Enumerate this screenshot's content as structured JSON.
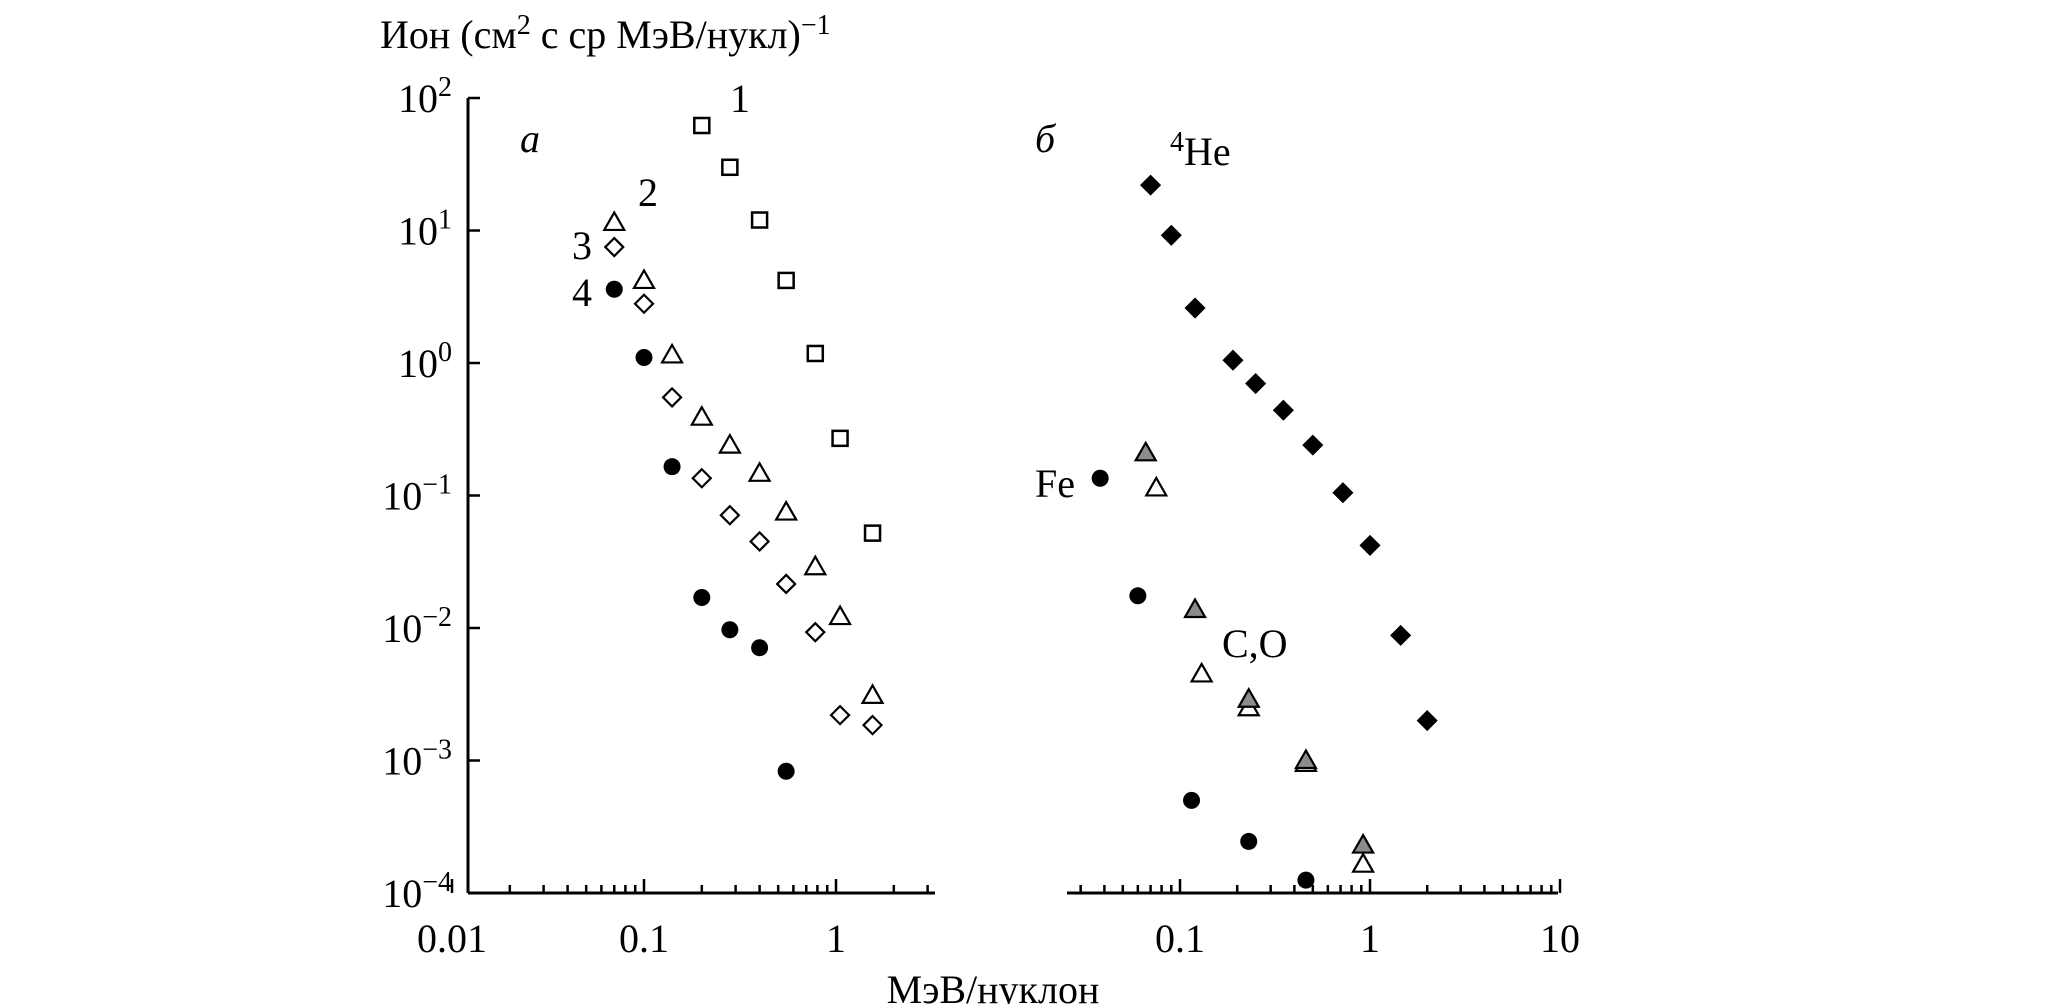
{
  "chart_data": {
    "type": "scatter",
    "ylabel": {
      "prefix": "Ион (см",
      "sup": "2",
      "middle": " с ср МэВ/нукл)",
      "sup2": "−1"
    },
    "xlabel": "МэВ/нуклон",
    "ylim": [
      0.0001,
      100
    ],
    "yticks": [
      {
        "base": "10",
        "exp": "2",
        "value": 100
      },
      {
        "base": "10",
        "exp": "1",
        "value": 10
      },
      {
        "base": "10",
        "exp": "0",
        "value": 1
      },
      {
        "base": "10",
        "exp": "−1",
        "value": 0.1
      },
      {
        "base": "10",
        "exp": "−2",
        "value": 0.01
      },
      {
        "base": "10",
        "exp": "−3",
        "value": 0.001
      },
      {
        "base": "10",
        "exp": "−4",
        "value": 0.0001
      }
    ],
    "panels": [
      {
        "letter": "а",
        "xlim": [
          0.01,
          3
        ],
        "xticks": [
          {
            "label": "0.01",
            "value": 0.01
          },
          {
            "label": "0.1",
            "value": 0.1
          },
          {
            "label": "1",
            "value": 1
          }
        ],
        "series": [
          {
            "name": "1",
            "marker": "square-open",
            "x": [
              0.2,
              0.28,
              0.4,
              0.55,
              0.78,
              1.05,
              1.55
            ],
            "y": [
              62,
              30,
              12,
              4.2,
              1.18,
              0.27,
              0.052
            ]
          },
          {
            "name": "2",
            "marker": "triangle-open",
            "x": [
              0.07,
              0.1,
              0.14,
              0.2,
              0.28,
              0.4,
              0.55,
              0.78,
              1.05,
              1.55
            ],
            "y": [
              11.5,
              4.2,
              1.15,
              0.39,
              0.24,
              0.147,
              0.075,
              0.029,
              0.0122,
              0.0031
            ]
          },
          {
            "name": "3",
            "marker": "diamond-open",
            "x": [
              0.07,
              0.1,
              0.14,
              0.2,
              0.28,
              0.4,
              0.55,
              0.78,
              1.05,
              1.55
            ],
            "y": [
              7.5,
              2.8,
              0.55,
              0.135,
              0.071,
              0.045,
              0.0215,
              0.0093,
              0.0022,
              0.00185
            ]
          },
          {
            "name": "4",
            "marker": "circle-filled",
            "x": [
              0.07,
              0.1,
              0.14,
              0.2,
              0.28,
              0.4,
              0.55
            ],
            "y": [
              3.6,
              1.1,
              0.165,
              0.017,
              0.0097,
              0.0071,
              0.00083
            ]
          }
        ]
      },
      {
        "letter": "б",
        "xlim": [
          0.025,
          10
        ],
        "xticks": [
          {
            "label": "0.1",
            "value": 0.1
          },
          {
            "label": "1",
            "value": 1
          },
          {
            "label": "10",
            "value": 10
          }
        ],
        "series": [
          {
            "name": "4He",
            "label_sup": "4",
            "label_base": "He",
            "marker": "diamond-filled",
            "x": [
              0.07,
              0.09,
              0.12,
              0.19,
              0.25,
              0.35,
              0.5,
              0.72,
              1.0,
              1.45,
              2.0
            ],
            "y": [
              22,
              9.2,
              2.6,
              1.05,
              0.7,
              0.44,
              0.24,
              0.105,
              0.042,
              0.0088,
              0.002
            ]
          },
          {
            "name": "Fe",
            "marker": "circle-filled",
            "x": [
              0.038,
              0.06,
              0.115,
              0.23,
              0.46
            ],
            "y": [
              0.135,
              0.0175,
              0.0005,
              0.000245,
              0.000125
            ]
          },
          {
            "name": "C,O",
            "marker": "triangle-open",
            "x": [
              0.075,
              0.13,
              0.23,
              0.46,
              0.92
            ],
            "y": [
              0.114,
              0.0045,
              0.0025,
              0.00095,
              0.000165
            ]
          },
          {
            "name": "C,O (grey)",
            "marker": "triangle-grey",
            "x": [
              0.066,
              0.12,
              0.23,
              0.46,
              0.92
            ],
            "y": [
              0.21,
              0.0138,
              0.0029,
              0.001,
              0.00023
            ]
          }
        ],
        "labels": [
          "Fe",
          "C,O"
        ]
      }
    ]
  }
}
